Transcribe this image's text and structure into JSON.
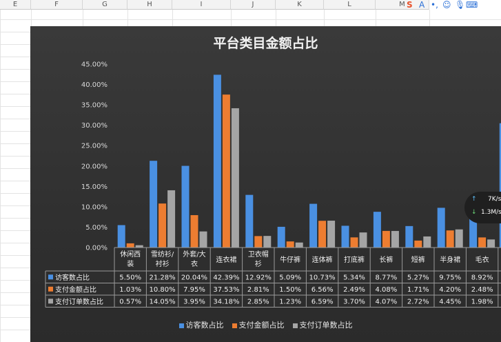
{
  "spreadsheet": {
    "columns": [
      "E",
      "F",
      "G",
      "H",
      "I",
      "J",
      "K",
      "L",
      "M"
    ]
  },
  "toolbar": {
    "icons": [
      "sogou-s-icon",
      "font-a-icon",
      "punctuation-icon",
      "emoji-icon",
      "mic-icon",
      "keyboard-icon"
    ]
  },
  "chart_data": {
    "type": "bar",
    "title": "平台类目金额占比",
    "categories": [
      "休闲西装",
      "雪纺衫/衬衫",
      "外套/大衣",
      "连衣裙",
      "卫衣帽衫",
      "牛仔裤",
      "连体裤",
      "打底裤",
      "长裤",
      "短裤",
      "半身裙",
      "毛衣"
    ],
    "series": [
      {
        "name": "访客数占比",
        "color": "#4a90e2",
        "values": [
          5.5,
          21.28,
          20.04,
          42.39,
          12.92,
          5.09,
          10.73,
          5.34,
          8.77,
          5.27,
          9.75,
          8.92
        ],
        "labels": [
          "5.50%",
          "21.28%",
          "20.04%",
          "42.39%",
          "12.92%",
          "5.09%",
          "10.73%",
          "5.34%",
          "8.77%",
          "5.27%",
          "9.75%",
          "8.92%"
        ]
      },
      {
        "name": "支付金额占比",
        "color": "#ed7d31",
        "values": [
          1.03,
          10.8,
          7.95,
          37.53,
          2.81,
          1.5,
          6.56,
          2.49,
          4.08,
          1.71,
          4.2,
          2.48
        ],
        "labels": [
          "1.03%",
          "10.80%",
          "7.95%",
          "37.53%",
          "2.81%",
          "1.50%",
          "6.56%",
          "2.49%",
          "4.08%",
          "1.71%",
          "4.20%",
          "2.48%"
        ]
      },
      {
        "name": "支付订单数占比",
        "color": "#a5a5a5",
        "values": [
          0.57,
          14.05,
          3.95,
          34.18,
          2.85,
          1.23,
          6.59,
          3.7,
          4.07,
          2.72,
          4.45,
          1.98
        ],
        "labels": [
          "0.57%",
          "14.05%",
          "3.95%",
          "34.18%",
          "2.85%",
          "1.23%",
          "6.59%",
          "3.70%",
          "4.07%",
          "2.72%",
          "4.45%",
          "1.98%"
        ]
      }
    ],
    "yticks": [
      "0.00%",
      "5.00%",
      "10.00%",
      "15.00%",
      "20.00%",
      "25.00%",
      "30.00%",
      "35.00%",
      "40.00%",
      "45.00%"
    ],
    "ylim": [
      0,
      45
    ],
    "legend_position": "bottom",
    "grid": false,
    "partial_next_bar_value": 30.5
  },
  "overlay": {
    "upload": "7K/s",
    "download": "1.3M/s"
  }
}
